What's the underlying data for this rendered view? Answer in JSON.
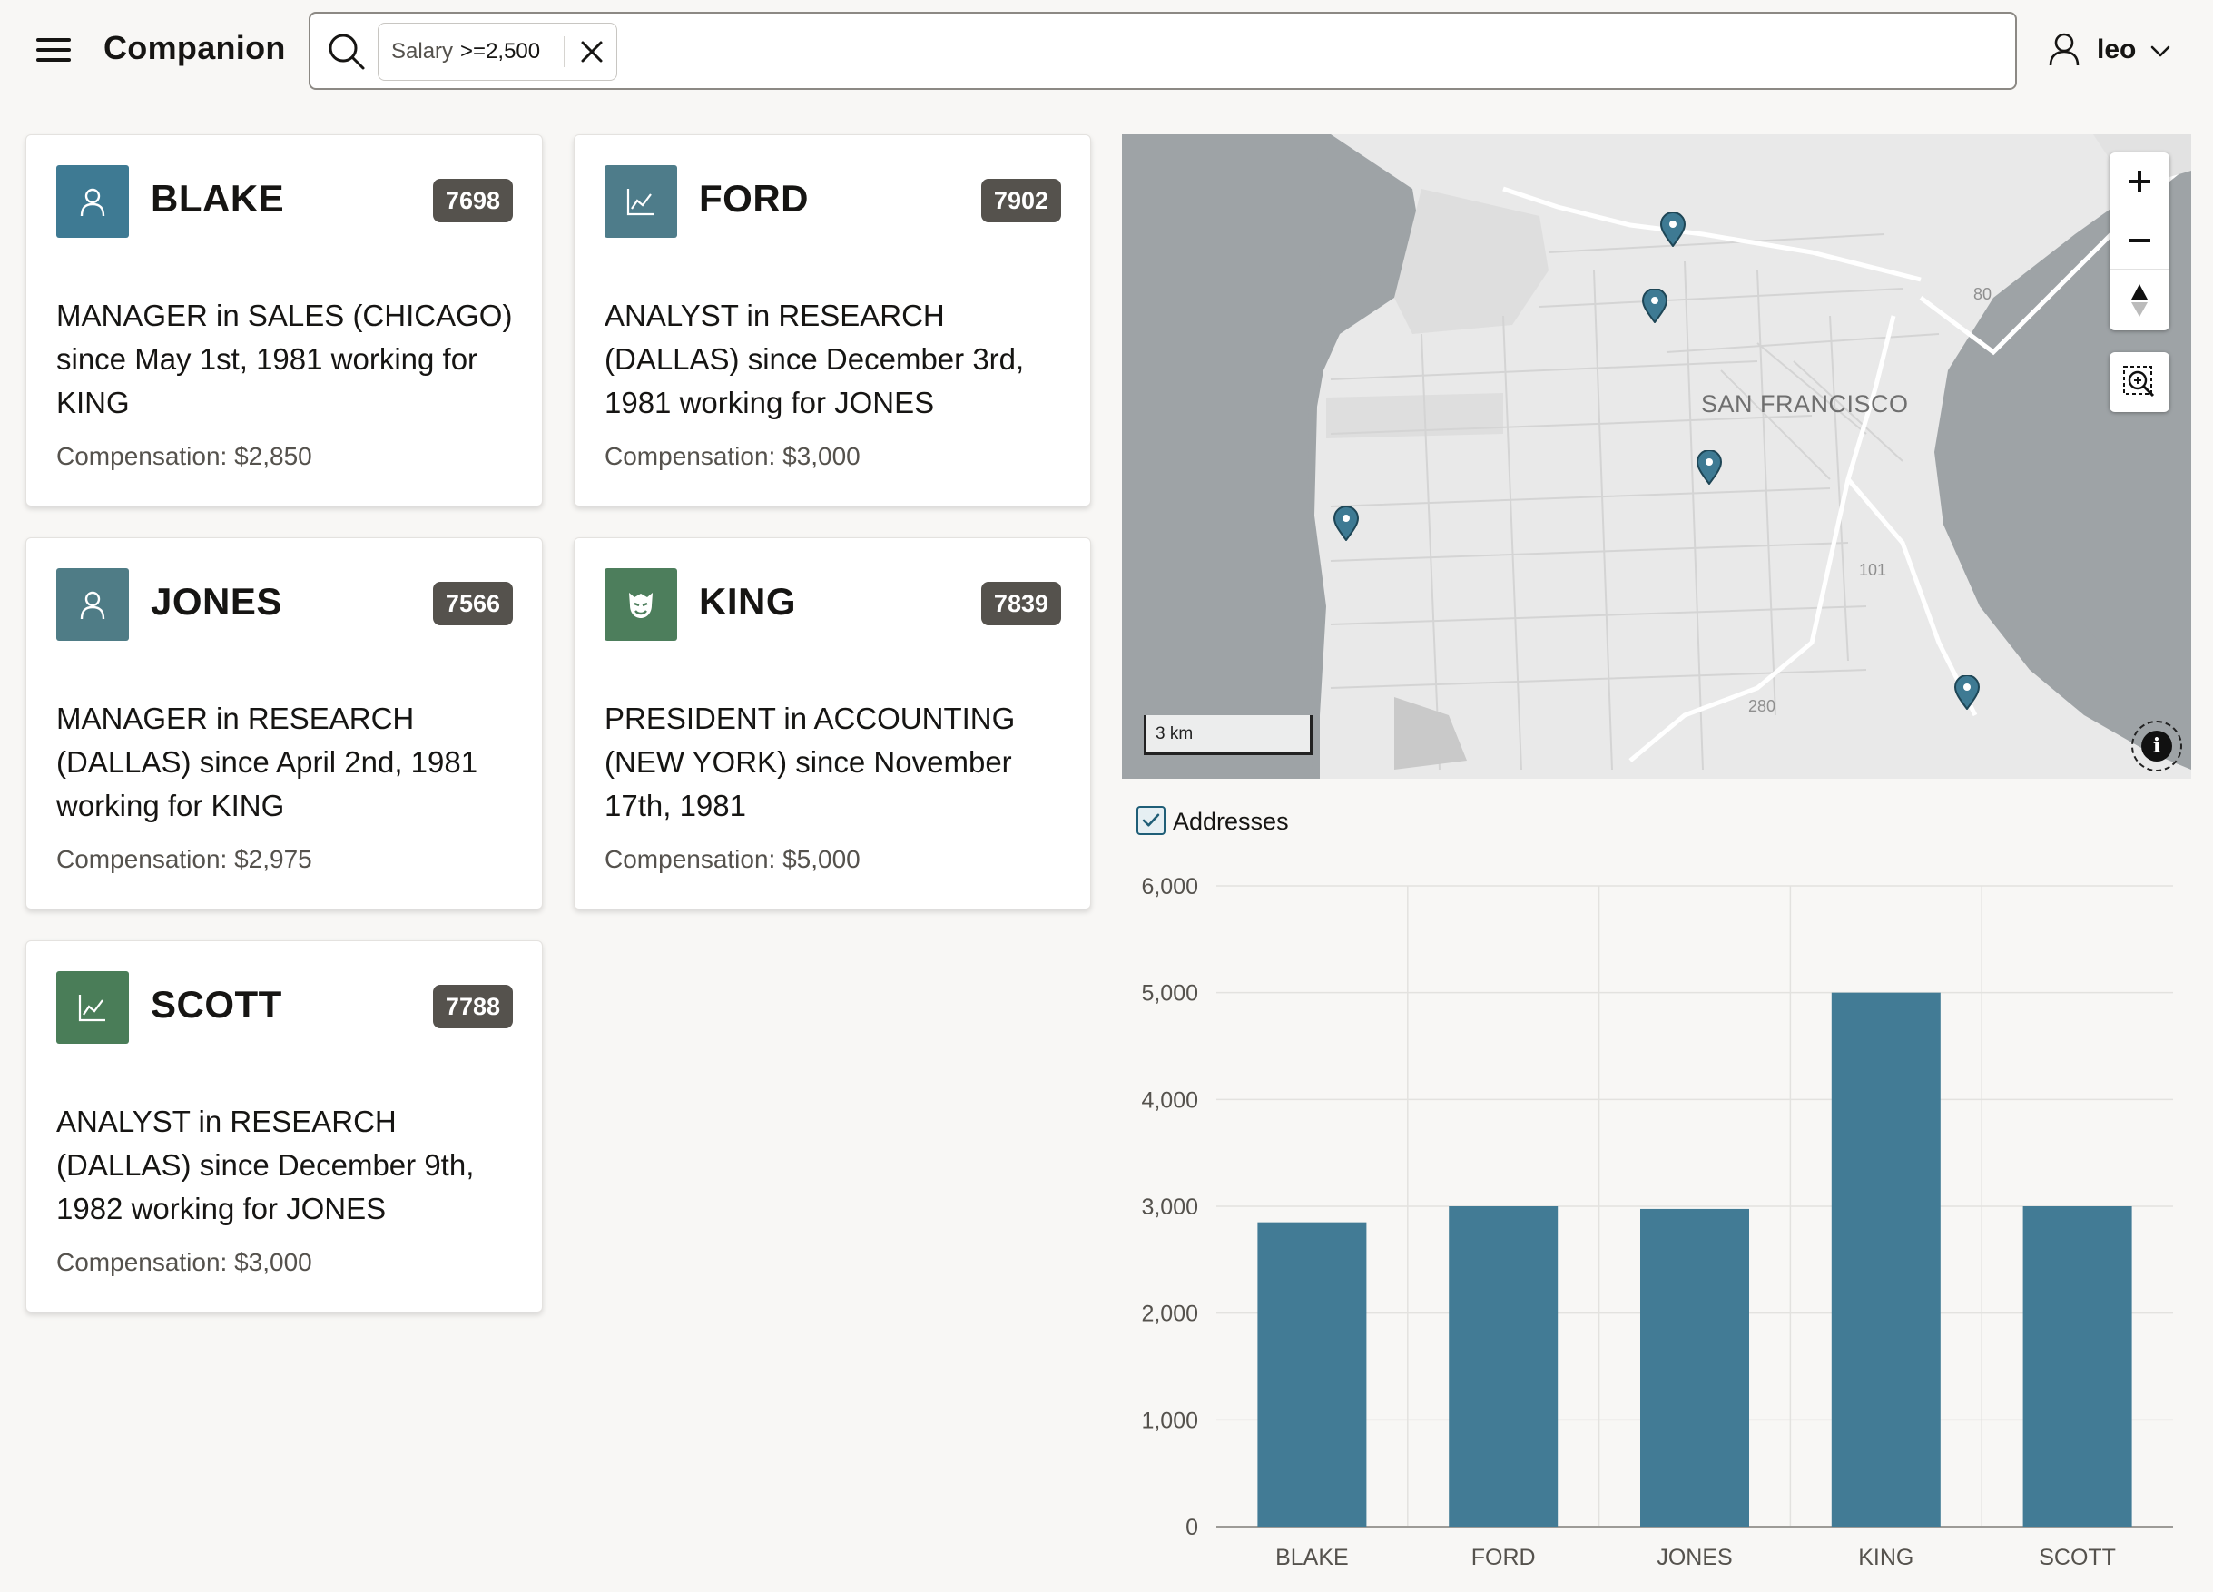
{
  "header": {
    "title": "Companion",
    "filter_chip": {
      "label": "Salary",
      "value": ">=2,500"
    },
    "user": {
      "name": "leo"
    }
  },
  "cards": [
    {
      "name": "BLAKE",
      "id": "7698",
      "icon": "person-icon",
      "avatar_color": "#3e7a93",
      "description": "MANAGER in SALES (CHICAGO) since May 1st, 1981 working for KING",
      "compensation": "Compensation: $2,850"
    },
    {
      "name": "FORD",
      "id": "7902",
      "icon": "trend-chart-icon",
      "avatar_color": "#4e7c8a",
      "description": "ANALYST in RESEARCH (DALLAS) since December 3rd, 1981 working for JONES",
      "compensation": "Compensation: $3,000"
    },
    {
      "name": "JONES",
      "id": "7566",
      "icon": "person-icon",
      "avatar_color": "#4f7c86",
      "description": "MANAGER in RESEARCH (DALLAS) since April 2nd, 1981 working for KING",
      "compensation": "Compensation: $2,975"
    },
    {
      "name": "KING",
      "id": "7839",
      "icon": "king-mask-icon",
      "avatar_color": "#4d7e5c",
      "description": "PRESIDENT in ACCOUNTING (NEW YORK) since November 17th, 1981",
      "compensation": "Compensation: $5,000"
    },
    {
      "name": "SCOTT",
      "id": "7788",
      "icon": "trend-chart-icon",
      "avatar_color": "#4a7d58",
      "description": "ANALYST in RESEARCH (DALLAS) since December 9th, 1982 working for JONES",
      "compensation": "Compensation: $3,000"
    }
  ],
  "map": {
    "city_label": "SAN FRANCISCO",
    "highways": [
      "80",
      "101",
      "280"
    ],
    "scale_label": "3 km",
    "marker_color": "#3e7a93",
    "marker_count": 5
  },
  "legend": {
    "label": "Addresses",
    "checked": true
  },
  "chart_data": {
    "type": "bar",
    "categories": [
      "BLAKE",
      "FORD",
      "JONES",
      "KING",
      "SCOTT"
    ],
    "values": [
      2850,
      3000,
      2975,
      5000,
      3000
    ],
    "ylim": [
      0,
      6000
    ],
    "yticks": [
      "0",
      "1,000",
      "2,000",
      "3,000",
      "4,000",
      "5,000",
      "6,000"
    ],
    "bar_color": "#427b95",
    "grid": true,
    "title": "",
    "xlabel": "",
    "ylabel": ""
  }
}
